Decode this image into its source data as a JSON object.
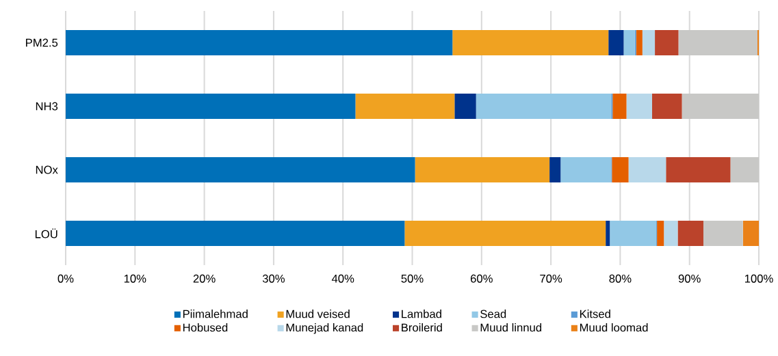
{
  "chart_data": {
    "type": "bar",
    "orientation": "horizontal",
    "stacked": true,
    "categories": [
      "PM2.5",
      "NH3",
      "NOx",
      "LOÜ"
    ],
    "series": [
      {
        "name": "Piimalehmad",
        "color": "#0070b8",
        "values": [
          55.8,
          41.8,
          50.4,
          48.9
        ]
      },
      {
        "name": "Muud veised",
        "color": "#f0a221",
        "values": [
          22.5,
          14.3,
          19.4,
          29.0
        ]
      },
      {
        "name": "Lambad",
        "color": "#00338c",
        "values": [
          2.2,
          3.1,
          1.6,
          0.6
        ]
      },
      {
        "name": "Sead",
        "color": "#92c8e6",
        "values": [
          1.6,
          19.5,
          7.3,
          6.7
        ]
      },
      {
        "name": "Kitsed",
        "color": "#5b9bd5",
        "values": [
          0.2,
          0.2,
          0.1,
          0.1
        ]
      },
      {
        "name": "Hobused",
        "color": "#e46000",
        "values": [
          0.9,
          2.0,
          2.4,
          1.0
        ]
      },
      {
        "name": "Munejad kanad",
        "color": "#b8d8ea",
        "values": [
          1.8,
          3.7,
          5.4,
          2.0
        ]
      },
      {
        "name": "Broilerid",
        "color": "#bb432b",
        "values": [
          3.4,
          4.3,
          9.3,
          3.7
        ]
      },
      {
        "name": "Muud linnud",
        "color": "#c8c8c6",
        "values": [
          11.4,
          11.1,
          4.1,
          5.7
        ]
      },
      {
        "name": "Muud loomad",
        "color": "#ea8118",
        "values": [
          0.2,
          0.0,
          0.0,
          2.3
        ]
      }
    ],
    "xlim": [
      0,
      100
    ],
    "xticks": [
      {
        "value": 0,
        "label": "0%"
      },
      {
        "value": 10,
        "label": "10%"
      },
      {
        "value": 20,
        "label": "20%"
      },
      {
        "value": 30,
        "label": "30%"
      },
      {
        "value": 40,
        "label": "40%"
      },
      {
        "value": 50,
        "label": "50%"
      },
      {
        "value": 60,
        "label": "60%"
      },
      {
        "value": 70,
        "label": "70%"
      },
      {
        "value": 80,
        "label": "80%"
      },
      {
        "value": 90,
        "label": "90%"
      },
      {
        "value": 100,
        "label": "100%"
      }
    ],
    "grid": "x",
    "legend": "bottom"
  }
}
